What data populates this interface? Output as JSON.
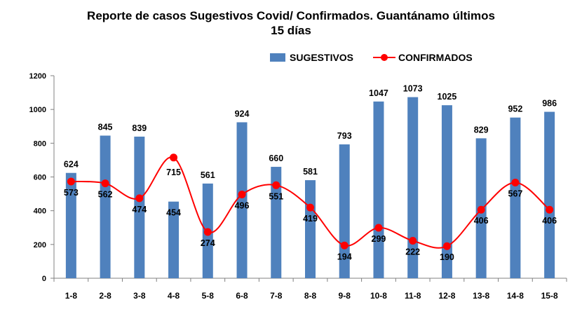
{
  "chart_data": {
    "type": "bar",
    "title_line1": "Reporte de casos Sugestivos Covid/ Confirmados. Guantánamo últimos",
    "title_line2": "15 días",
    "categories": [
      "1-8",
      "2-8",
      "3-8",
      "4-8",
      "5-8",
      "6-8",
      "7-8",
      "8-8",
      "9-8",
      "10-8",
      "11-8",
      "12-8",
      "13-8",
      "14-8",
      "15-8"
    ],
    "series": [
      {
        "name": "SUGESTIVOS",
        "kind": "bar",
        "color": "#4F81BD",
        "values": [
          624,
          845,
          839,
          454,
          561,
          924,
          660,
          581,
          793,
          1047,
          1073,
          1025,
          829,
          952,
          986
        ]
      },
      {
        "name": "CONFIRMADOS",
        "kind": "line",
        "color": "#FF0000",
        "values": [
          573,
          562,
          474,
          715,
          274,
          496,
          551,
          419,
          194,
          299,
          222,
          190,
          406,
          567,
          406
        ]
      }
    ],
    "ylim": [
      0,
      1200
    ],
    "yticks": [
      0,
      200,
      400,
      600,
      800,
      1000,
      1200
    ],
    "legend_position": "top-right",
    "xlabel": "",
    "ylabel": ""
  }
}
